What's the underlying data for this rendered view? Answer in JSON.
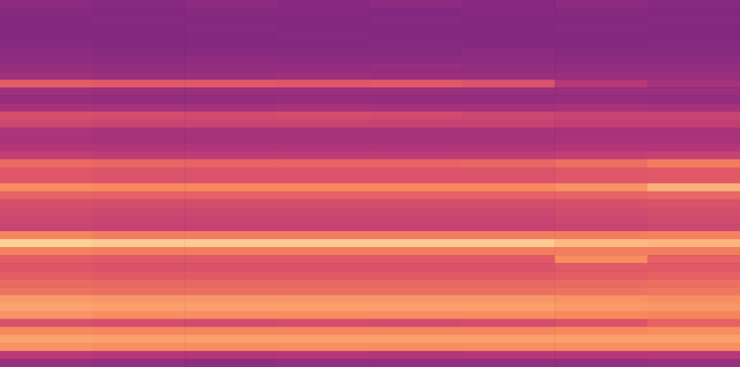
{
  "chart_data": {
    "type": "heatmap",
    "tick_labels": false,
    "grid": false,
    "zlim": [
      0,
      1
    ],
    "cells": [
      [
        0.38,
        0.37,
        0.38,
        0.37,
        0.38,
        0.37,
        0.38,
        0.37
      ],
      [
        0.37,
        0.36,
        0.37,
        0.37,
        0.36,
        0.37,
        0.37,
        0.36
      ],
      [
        0.36,
        0.37,
        0.36,
        0.36,
        0.37,
        0.36,
        0.36,
        0.37
      ],
      [
        0.36,
        0.36,
        0.37,
        0.36,
        0.36,
        0.36,
        0.37,
        0.36
      ],
      [
        0.36,
        0.36,
        0.36,
        0.37,
        0.36,
        0.36,
        0.36,
        0.36
      ],
      [
        0.37,
        0.36,
        0.36,
        0.36,
        0.37,
        0.36,
        0.36,
        0.37
      ],
      [
        0.38,
        0.37,
        0.37,
        0.37,
        0.37,
        0.38,
        0.37,
        0.37
      ],
      [
        0.39,
        0.38,
        0.39,
        0.38,
        0.38,
        0.39,
        0.38,
        0.38
      ],
      [
        0.41,
        0.4,
        0.4,
        0.4,
        0.41,
        0.4,
        0.4,
        0.4
      ],
      [
        0.43,
        0.42,
        0.42,
        0.43,
        0.42,
        0.42,
        0.42,
        0.42
      ],
      [
        0.63,
        0.62,
        0.62,
        0.61,
        0.62,
        0.6,
        0.5,
        0.45
      ],
      [
        0.43,
        0.42,
        0.42,
        0.42,
        0.42,
        0.42,
        0.42,
        0.42
      ],
      [
        0.41,
        0.4,
        0.4,
        0.41,
        0.4,
        0.4,
        0.41,
        0.4
      ],
      [
        0.46,
        0.45,
        0.45,
        0.46,
        0.45,
        0.45,
        0.46,
        0.45
      ],
      [
        0.59,
        0.58,
        0.57,
        0.58,
        0.57,
        0.56,
        0.55,
        0.55
      ],
      [
        0.56,
        0.55,
        0.55,
        0.55,
        0.54,
        0.54,
        0.53,
        0.53
      ],
      [
        0.47,
        0.46,
        0.46,
        0.46,
        0.46,
        0.46,
        0.46,
        0.46
      ],
      [
        0.46,
        0.45,
        0.45,
        0.45,
        0.45,
        0.45,
        0.46,
        0.46
      ],
      [
        0.49,
        0.48,
        0.48,
        0.48,
        0.48,
        0.48,
        0.49,
        0.49
      ],
      [
        0.53,
        0.52,
        0.52,
        0.52,
        0.52,
        0.52,
        0.53,
        0.54
      ],
      [
        0.67,
        0.66,
        0.65,
        0.65,
        0.65,
        0.66,
        0.68,
        0.72
      ],
      [
        0.61,
        0.6,
        0.6,
        0.6,
        0.6,
        0.6,
        0.61,
        0.62
      ],
      [
        0.61,
        0.6,
        0.6,
        0.6,
        0.6,
        0.6,
        0.61,
        0.62
      ],
      [
        0.76,
        0.75,
        0.75,
        0.75,
        0.75,
        0.75,
        0.77,
        0.84
      ],
      [
        0.65,
        0.64,
        0.64,
        0.64,
        0.64,
        0.64,
        0.65,
        0.66
      ],
      [
        0.59,
        0.58,
        0.58,
        0.58,
        0.58,
        0.58,
        0.59,
        0.6
      ],
      [
        0.57,
        0.56,
        0.56,
        0.56,
        0.56,
        0.56,
        0.57,
        0.58
      ],
      [
        0.56,
        0.55,
        0.55,
        0.55,
        0.55,
        0.55,
        0.56,
        0.57
      ],
      [
        0.55,
        0.54,
        0.54,
        0.54,
        0.54,
        0.54,
        0.55,
        0.56
      ],
      [
        0.74,
        0.72,
        0.72,
        0.72,
        0.72,
        0.72,
        0.72,
        0.73
      ],
      [
        0.91,
        0.9,
        0.9,
        0.9,
        0.9,
        0.9,
        0.86,
        0.85
      ],
      [
        0.73,
        0.72,
        0.72,
        0.72,
        0.72,
        0.72,
        0.72,
        0.72
      ],
      [
        0.63,
        0.62,
        0.62,
        0.62,
        0.62,
        0.62,
        0.76,
        0.64
      ],
      [
        0.61,
        0.6,
        0.6,
        0.6,
        0.6,
        0.6,
        0.62,
        0.62
      ],
      [
        0.63,
        0.62,
        0.62,
        0.62,
        0.62,
        0.62,
        0.63,
        0.64
      ],
      [
        0.67,
        0.66,
        0.66,
        0.66,
        0.66,
        0.66,
        0.67,
        0.68
      ],
      [
        0.69,
        0.68,
        0.68,
        0.68,
        0.68,
        0.68,
        0.69,
        0.7
      ],
      [
        0.79,
        0.78,
        0.78,
        0.78,
        0.78,
        0.78,
        0.77,
        0.76
      ],
      [
        0.81,
        0.8,
        0.8,
        0.8,
        0.8,
        0.8,
        0.79,
        0.78
      ],
      [
        0.77,
        0.76,
        0.76,
        0.76,
        0.76,
        0.76,
        0.75,
        0.74
      ],
      [
        0.59,
        0.58,
        0.57,
        0.58,
        0.57,
        0.58,
        0.6,
        0.64
      ],
      [
        0.75,
        0.74,
        0.74,
        0.74,
        0.74,
        0.74,
        0.75,
        0.76
      ],
      [
        0.81,
        0.8,
        0.8,
        0.8,
        0.8,
        0.8,
        0.8,
        0.8
      ],
      [
        0.77,
        0.76,
        0.76,
        0.76,
        0.76,
        0.76,
        0.76,
        0.76
      ],
      [
        0.51,
        0.5,
        0.49,
        0.5,
        0.49,
        0.5,
        0.5,
        0.5
      ],
      [
        0.41,
        0.4,
        0.39,
        0.4,
        0.4,
        0.4,
        0.4,
        0.41
      ]
    ]
  }
}
